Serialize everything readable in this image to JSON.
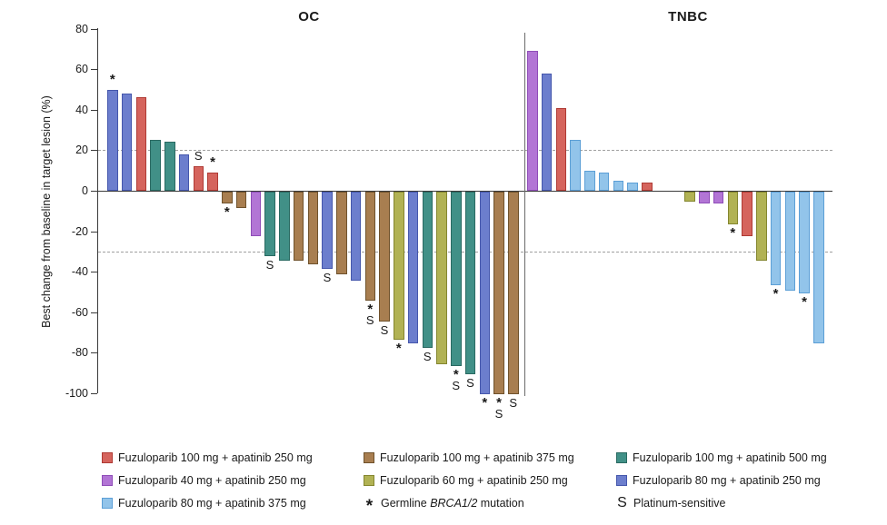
{
  "y_axis": {
    "label": "Best change from baseline in target lesion (%)",
    "ticks": [
      80,
      60,
      40,
      20,
      0,
      -20,
      -40,
      -60,
      -80,
      -100
    ]
  },
  "dose_groups": {
    "fz100_ap250": {
      "label": "Fuzuloparib 100 mg + apatinib 250 mg",
      "fill": "#D5645D",
      "stroke": "#AF3A34"
    },
    "fz100_ap375": {
      "label": "Fuzuloparib 100 mg + apatinib 375 mg",
      "fill": "#A87E50",
      "stroke": "#6F522C"
    },
    "fz100_ap500": {
      "label": "Fuzuloparib 100 mg + apatinib 500 mg",
      "fill": "#419087",
      "stroke": "#2A6A62"
    },
    "fz40_ap250": {
      "label": "Fuzuloparib 40 mg + apatinib 250 mg",
      "fill": "#B275D5",
      "stroke": "#8F4DB8"
    },
    "fz60_ap250": {
      "label": "Fuzuloparib 60 mg + apatinib 250 mg",
      "fill": "#B1B254",
      "stroke": "#84862F"
    },
    "fz80_ap250": {
      "label": "Fuzuloparib 80 mg + apatinib 250 mg",
      "fill": "#6C7ECD",
      "stroke": "#4557AC"
    },
    "fz80_ap375": {
      "label": "Fuzuloparib 80 mg + apatinib 375 mg",
      "fill": "#92C4EA",
      "stroke": "#5C9FD6"
    }
  },
  "markers": {
    "asterisk": {
      "symbol": "*",
      "meaning": "Germline BRCA1/2 mutation"
    },
    "s": {
      "symbol": "S",
      "meaning": "Platinum-sensitive"
    }
  },
  "chart_data": {
    "type": "bar",
    "ylabel": "Best change from baseline in target lesion (%)",
    "ylim": [
      -100,
      80
    ],
    "yticks": [
      80,
      60,
      40,
      20,
      0,
      -20,
      -40,
      -60,
      -80,
      -100
    ],
    "reference_lines": [
      20,
      -30
    ],
    "grid": false,
    "panels": [
      {
        "name": "OC",
        "bars": [
          {
            "value": 50,
            "group": "fz80_ap250",
            "flags": [
              "*"
            ]
          },
          {
            "value": 48,
            "group": "fz80_ap250"
          },
          {
            "value": 46,
            "group": "fz100_ap250"
          },
          {
            "value": 25,
            "group": "fz100_ap500"
          },
          {
            "value": 24,
            "group": "fz100_ap500"
          },
          {
            "value": 18,
            "group": "fz80_ap250"
          },
          {
            "value": 12,
            "group": "fz100_ap250",
            "flags": [
              "S"
            ]
          },
          {
            "value": 9,
            "group": "fz100_ap250",
            "flags": [
              "*"
            ]
          },
          {
            "value": -6,
            "group": "fz100_ap375",
            "flags": [
              "*"
            ]
          },
          {
            "value": -8,
            "group": "fz100_ap375"
          },
          {
            "value": -22,
            "group": "fz40_ap250"
          },
          {
            "value": -32,
            "group": "fz100_ap500",
            "flags": [
              "S"
            ]
          },
          {
            "value": -34,
            "group": "fz100_ap500"
          },
          {
            "value": -34,
            "group": "fz100_ap375"
          },
          {
            "value": -36,
            "group": "fz100_ap375"
          },
          {
            "value": -38,
            "group": "fz80_ap250",
            "flags": [
              "S"
            ]
          },
          {
            "value": -41,
            "group": "fz100_ap375"
          },
          {
            "value": -44,
            "group": "fz80_ap250"
          },
          {
            "value": -54,
            "group": "fz100_ap375",
            "flags": [
              "*",
              "S"
            ]
          },
          {
            "value": -64,
            "group": "fz100_ap375",
            "flags": [
              "S"
            ]
          },
          {
            "value": -73,
            "group": "fz60_ap250",
            "flags": [
              "*"
            ]
          },
          {
            "value": -75,
            "group": "fz80_ap250"
          },
          {
            "value": -77,
            "group": "fz100_ap500",
            "flags": [
              "S"
            ]
          },
          {
            "value": -85,
            "group": "fz60_ap250"
          },
          {
            "value": -86,
            "group": "fz100_ap500",
            "flags": [
              "*",
              "S"
            ]
          },
          {
            "value": -90,
            "group": "fz100_ap500",
            "flags": [
              "S"
            ]
          },
          {
            "value": -100,
            "group": "fz80_ap250",
            "flags": [
              "*"
            ]
          },
          {
            "value": -100,
            "group": "fz100_ap375",
            "flags": [
              "*",
              "S"
            ]
          },
          {
            "value": -100,
            "group": "fz100_ap375",
            "flags": [
              "S"
            ]
          }
        ]
      },
      {
        "name": "TNBC",
        "bars": [
          {
            "value": 69,
            "group": "fz40_ap250"
          },
          {
            "value": 58,
            "group": "fz80_ap250"
          },
          {
            "value": 41,
            "group": "fz100_ap250"
          },
          {
            "value": 25,
            "group": "fz80_ap375"
          },
          {
            "value": 10,
            "group": "fz80_ap375"
          },
          {
            "value": 9,
            "group": "fz80_ap375"
          },
          {
            "value": 5,
            "group": "fz80_ap375"
          },
          {
            "value": 4,
            "group": "fz80_ap375"
          },
          {
            "value": 4,
            "group": "fz100_ap250",
            "gap_after": 2
          },
          {
            "value": -5,
            "group": "fz60_ap250"
          },
          {
            "value": -6,
            "group": "fz40_ap250"
          },
          {
            "value": -6,
            "group": "fz40_ap250"
          },
          {
            "value": -16,
            "group": "fz60_ap250",
            "flags": [
              "*"
            ]
          },
          {
            "value": -22,
            "group": "fz100_ap250"
          },
          {
            "value": -34,
            "group": "fz60_ap250"
          },
          {
            "value": -46,
            "group": "fz80_ap375",
            "flags": [
              "*"
            ]
          },
          {
            "value": -49,
            "group": "fz80_ap375"
          },
          {
            "value": -50,
            "group": "fz80_ap375",
            "flags": [
              "*"
            ]
          },
          {
            "value": -75,
            "group": "fz80_ap375"
          }
        ]
      }
    ]
  },
  "legend": {
    "rows": [
      [
        {
          "type": "swatch",
          "group": "fz100_ap250"
        },
        {
          "type": "swatch",
          "group": "fz100_ap375"
        },
        {
          "type": "swatch",
          "group": "fz100_ap500"
        }
      ],
      [
        {
          "type": "swatch",
          "group": "fz40_ap250"
        },
        {
          "type": "swatch",
          "group": "fz60_ap250"
        },
        {
          "type": "swatch",
          "group": "fz80_ap250"
        }
      ],
      [
        {
          "type": "swatch",
          "group": "fz80_ap375"
        },
        {
          "type": "symbol",
          "symbol": "*",
          "parts": [
            "Germline ",
            "BRCA1/2",
            " mutation"
          ],
          "italic_part": 1
        },
        {
          "type": "symbol",
          "symbol": "S",
          "parts": [
            "Platinum-sensitive"
          ],
          "italic_part": -1
        }
      ]
    ]
  }
}
